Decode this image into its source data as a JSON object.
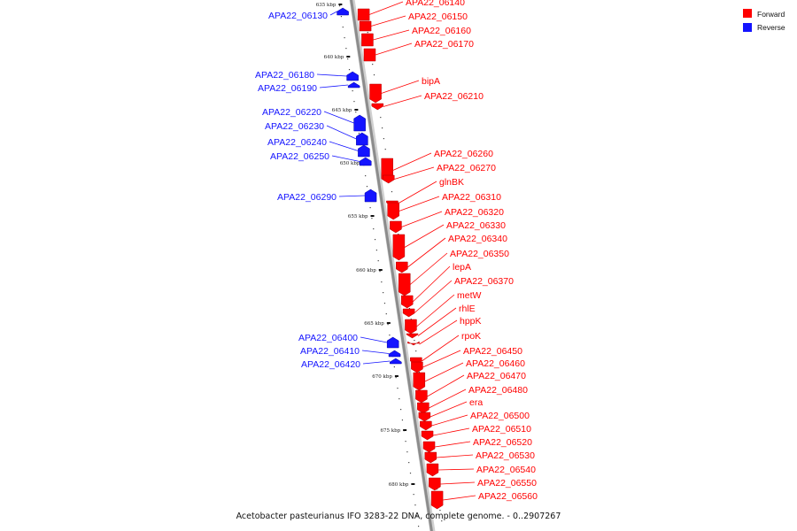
{
  "colors": {
    "forward": "#ff0000",
    "reverse": "#1414ff",
    "backbone": "#8c8c8c"
  },
  "legend": {
    "forward": "Forward",
    "reverse": "Reverse"
  },
  "caption": "Acetobacter pasteurianus IFO 3283-22 DNA, complete genome. - 0..2907267",
  "ticks": [
    "635 kbp",
    "640 kbp",
    "645 kbp",
    "650 kbp",
    "655 kbp",
    "660 kbp",
    "665 kbp",
    "670 kbp",
    "675 kbp",
    "680 kbp"
  ],
  "genes": [
    {
      "name": "APA22_06130",
      "strand": "reverse"
    },
    {
      "name": "APA22_06140",
      "strand": "forward"
    },
    {
      "name": "APA22_06150",
      "strand": "forward"
    },
    {
      "name": "APA22_06160",
      "strand": "forward"
    },
    {
      "name": "APA22_06170",
      "strand": "forward"
    },
    {
      "name": "APA22_06180",
      "strand": "reverse"
    },
    {
      "name": "APA22_06190",
      "strand": "reverse"
    },
    {
      "name": "bipA",
      "strand": "forward"
    },
    {
      "name": "APA22_06210",
      "strand": "forward"
    },
    {
      "name": "APA22_06220",
      "strand": "reverse"
    },
    {
      "name": "APA22_06230",
      "strand": "reverse"
    },
    {
      "name": "APA22_06240",
      "strand": "reverse"
    },
    {
      "name": "APA22_06250",
      "strand": "reverse"
    },
    {
      "name": "APA22_06260",
      "strand": "forward"
    },
    {
      "name": "APA22_06270",
      "strand": "forward"
    },
    {
      "name": "glnBK",
      "strand": "forward"
    },
    {
      "name": "APA22_06290",
      "strand": "reverse"
    },
    {
      "name": "APA22_06310",
      "strand": "forward"
    },
    {
      "name": "APA22_06320",
      "strand": "forward"
    },
    {
      "name": "APA22_06330",
      "strand": "forward"
    },
    {
      "name": "APA22_06340",
      "strand": "forward"
    },
    {
      "name": "APA22_06350",
      "strand": "forward"
    },
    {
      "name": "lepA",
      "strand": "forward"
    },
    {
      "name": "APA22_06370",
      "strand": "forward"
    },
    {
      "name": "metW",
      "strand": "forward"
    },
    {
      "name": "rhlE",
      "strand": "forward"
    },
    {
      "name": "hppK",
      "strand": "forward"
    },
    {
      "name": "rpoK",
      "strand": "forward"
    },
    {
      "name": "APA22_06400",
      "strand": "reverse"
    },
    {
      "name": "APA22_06410",
      "strand": "reverse"
    },
    {
      "name": "APA22_06420",
      "strand": "reverse"
    },
    {
      "name": "APA22_06450",
      "strand": "forward"
    },
    {
      "name": "APA22_06460",
      "strand": "forward"
    },
    {
      "name": "APA22_06470",
      "strand": "forward"
    },
    {
      "name": "APA22_06480",
      "strand": "forward"
    },
    {
      "name": "era",
      "strand": "forward"
    },
    {
      "name": "APA22_06500",
      "strand": "forward"
    },
    {
      "name": "APA22_06510",
      "strand": "forward"
    },
    {
      "name": "APA22_06520",
      "strand": "forward"
    },
    {
      "name": "APA22_06530",
      "strand": "forward"
    },
    {
      "name": "APA22_06540",
      "strand": "forward"
    },
    {
      "name": "APA22_06550",
      "strand": "forward"
    },
    {
      "name": "APA22_06560",
      "strand": "forward"
    }
  ]
}
